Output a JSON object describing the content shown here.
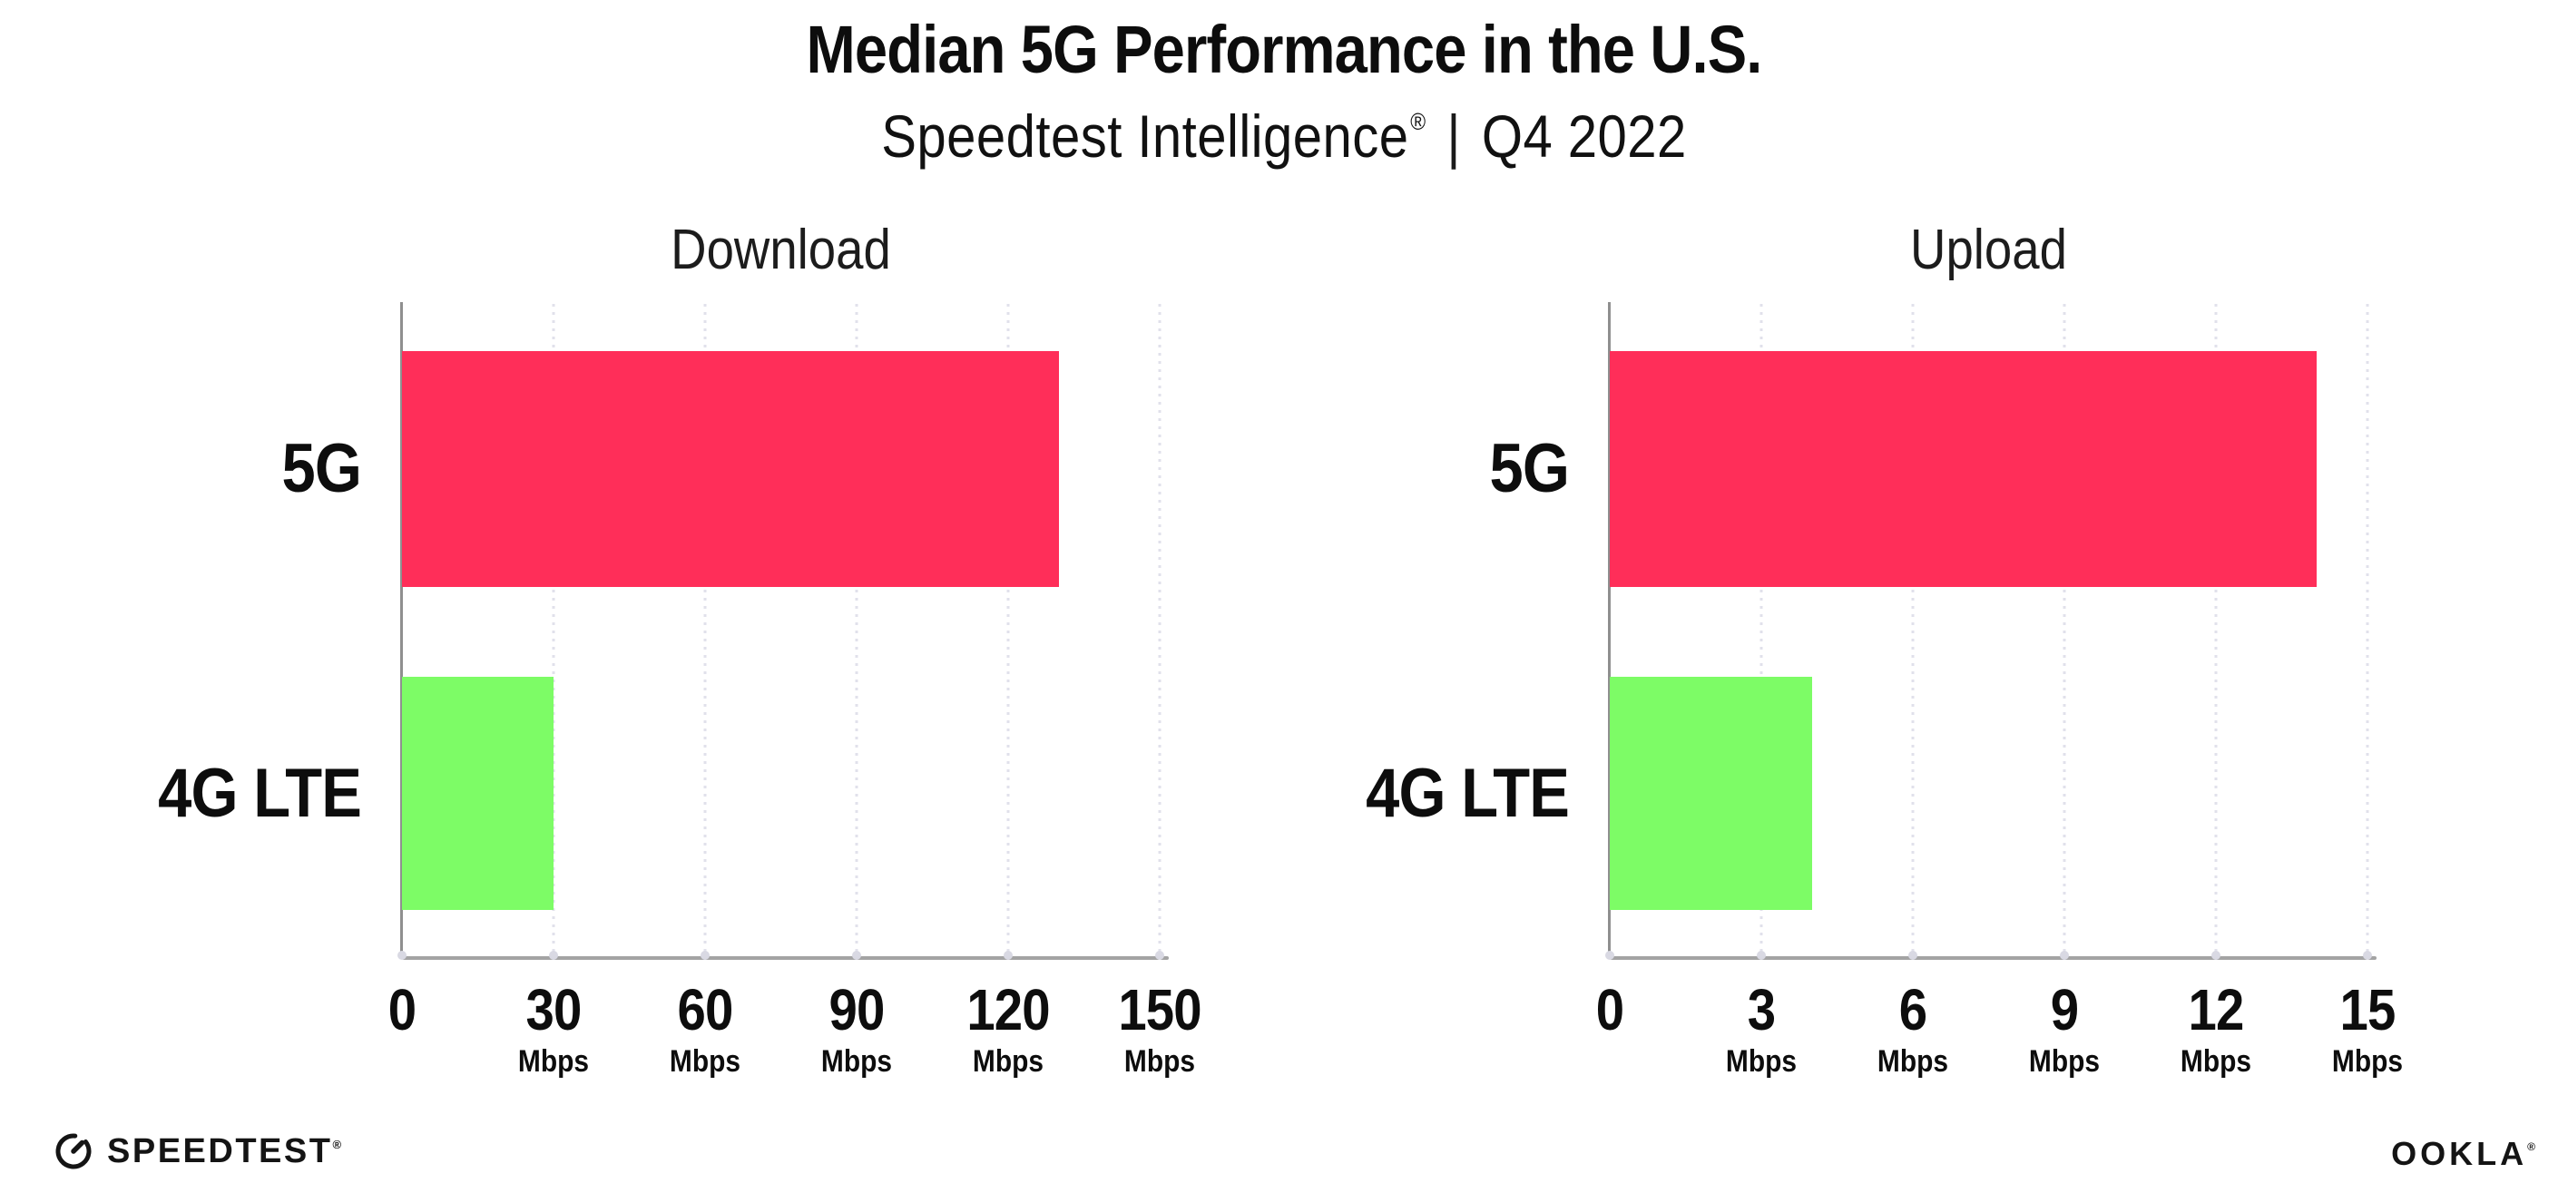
{
  "header": {
    "title": "Median 5G Performance in the U.S.",
    "subtitle": {
      "brand": "Speedtest Intelligence",
      "reg": "®",
      "separator": "|",
      "period": "Q4 2022"
    }
  },
  "footer": {
    "speedtest": "SPEEDTEST",
    "speedtest_reg": "®",
    "ookla": "OOKLA",
    "ookla_reg": "®"
  },
  "colors": {
    "bar_5g": "#ff2e59",
    "bar_4g_lte": "#7dfc66",
    "gridline": "#e1e1eb",
    "x_axis": "#a3a3a3",
    "y_axis": "#8f8f8f",
    "text": "#0d0d0d"
  },
  "chart_data": [
    {
      "type": "bar",
      "orientation": "horizontal",
      "title": "Download",
      "categories": [
        "5G",
        "4G LTE"
      ],
      "values": [
        130,
        30
      ],
      "unit": "Mbps",
      "xlim": [
        0,
        150
      ],
      "xticks": [
        0,
        30,
        60,
        90,
        120,
        150
      ],
      "bar_colors": [
        "#ff2e59",
        "#7dfc66"
      ],
      "grid": "vertical-dotted",
      "legend": "none"
    },
    {
      "type": "bar",
      "orientation": "horizontal",
      "title": "Upload",
      "categories": [
        "5G",
        "4G LTE"
      ],
      "values": [
        14,
        4
      ],
      "unit": "Mbps",
      "xlim": [
        0,
        15
      ],
      "xticks": [
        0,
        3,
        6,
        9,
        12,
        15
      ],
      "bar_colors": [
        "#ff2e59",
        "#7dfc66"
      ],
      "grid": "vertical-dotted",
      "legend": "none"
    }
  ]
}
